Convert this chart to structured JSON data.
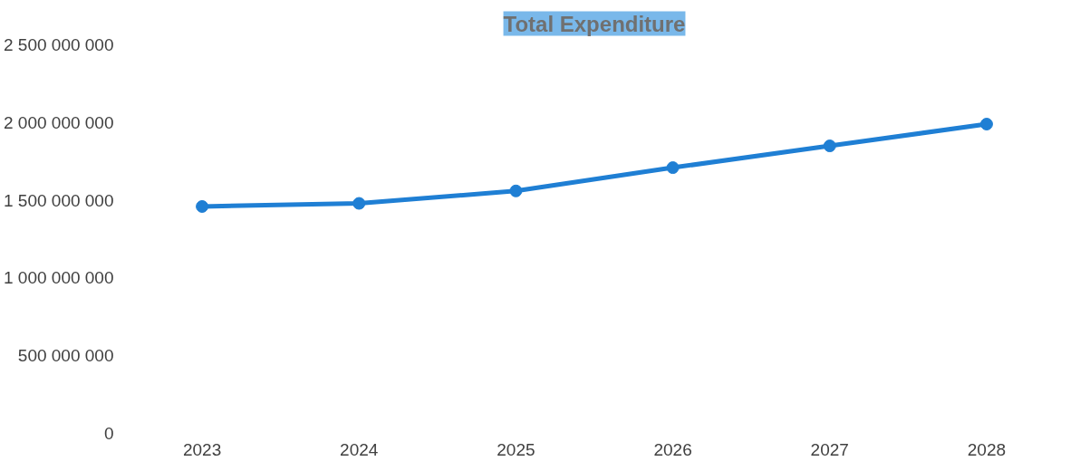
{
  "chart_data": {
    "type": "line",
    "title": "Total Expenditure",
    "categories": [
      "2023",
      "2024",
      "2025",
      "2026",
      "2027",
      "2028"
    ],
    "series": [
      {
        "color": "#1f7fd4",
        "values": [
          1460000000,
          1480000000,
          1560000000,
          1710000000,
          1850000000,
          1990000000
        ]
      }
    ],
    "ylim": [
      0,
      2500000000
    ],
    "yticks": [
      0,
      {
        "value": 500000000,
        "label": "500 000 000"
      },
      {
        "value": 1000000000,
        "label": "1 000 000 000"
      },
      {
        "value": 1500000000,
        "label": "1 500 000 000"
      },
      {
        "value": 2000000000,
        "label": "2 000 000 000"
      },
      {
        "value": 2500000000,
        "label": "2 500 000 000"
      }
    ],
    "marker": "circle",
    "line_style": "solid",
    "grid": false
  }
}
